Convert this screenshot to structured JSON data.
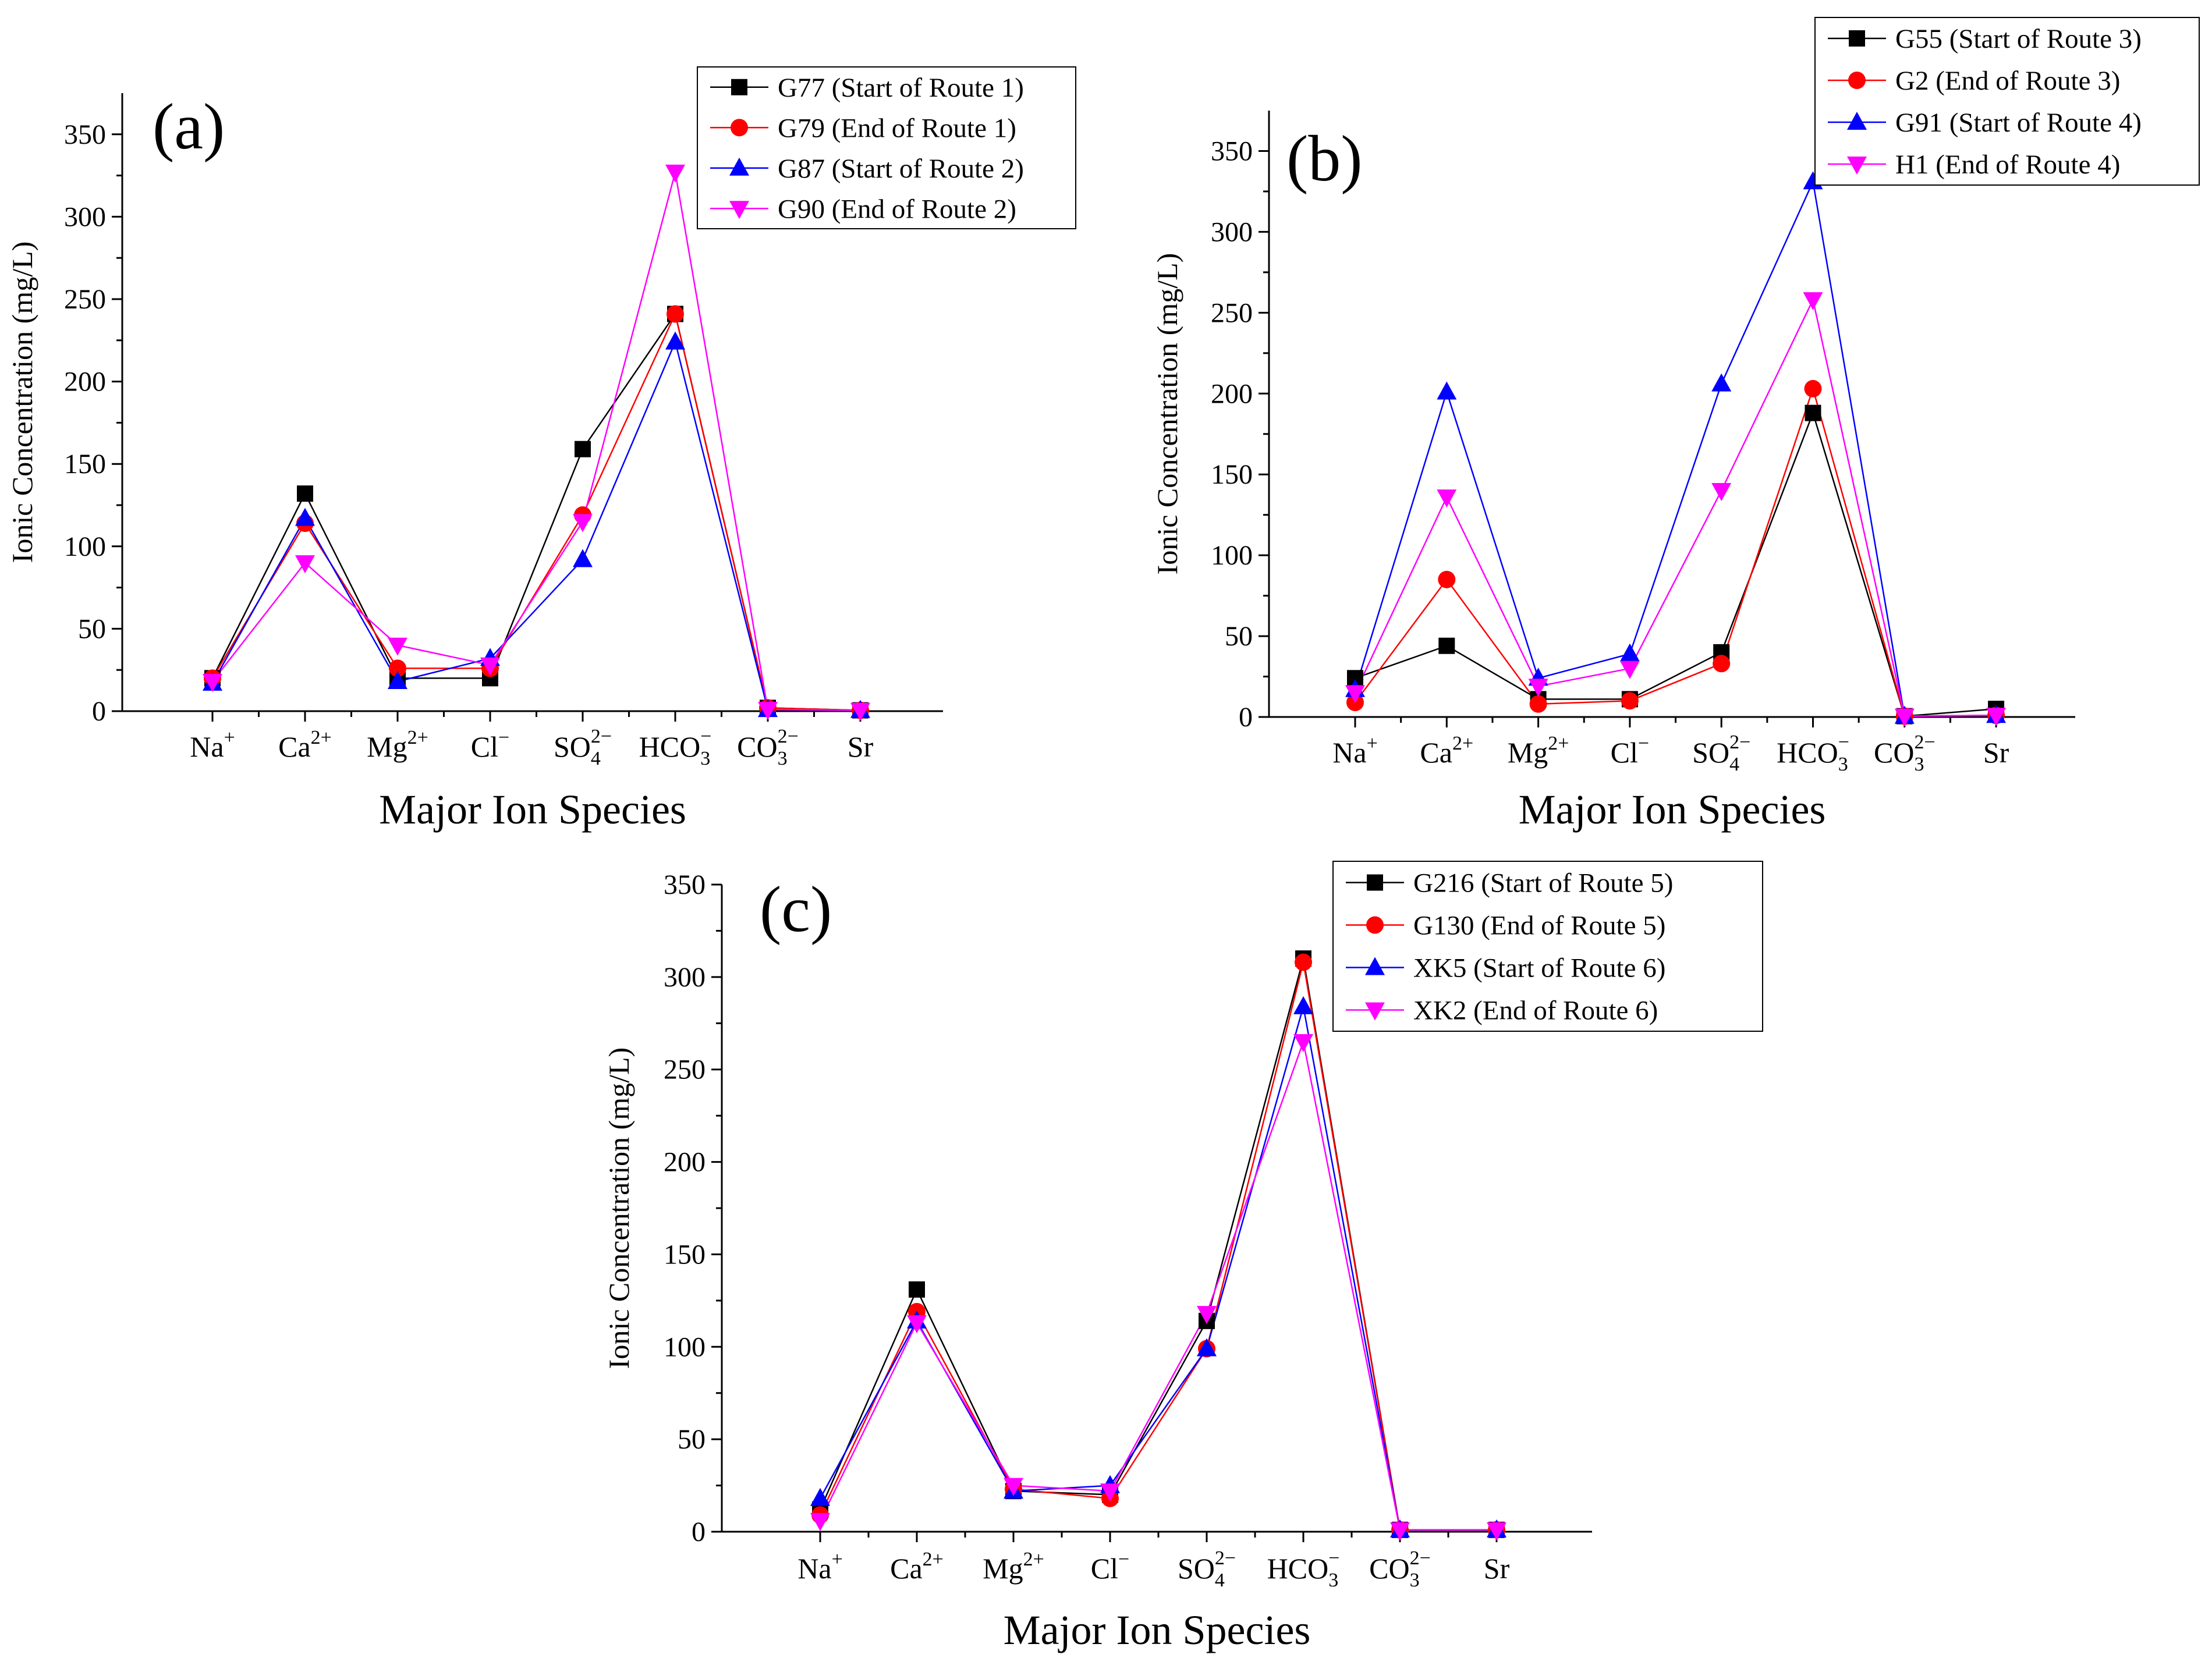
{
  "chart_data": [
    {
      "type": "line",
      "panel_label": "(a)",
      "xlabel": "Major Ion Species",
      "ylabel": "Ionic Concentration (mg/L)",
      "ylim": [
        0,
        375
      ],
      "yticks": [
        0,
        50,
        100,
        150,
        200,
        250,
        300,
        350
      ],
      "categories": [
        {
          "base": "Na",
          "sup": "+",
          "sub": ""
        },
        {
          "base": "Ca",
          "sup": "2+",
          "sub": ""
        },
        {
          "base": "Mg",
          "sup": "2+",
          "sub": ""
        },
        {
          "base": "Cl",
          "sup": "−",
          "sub": ""
        },
        {
          "base": "SO",
          "sup": "2−",
          "sub": "4"
        },
        {
          "base": "HCO",
          "sup": "−",
          "sub": "3"
        },
        {
          "base": "CO",
          "sup": "2−",
          "sub": "3"
        },
        {
          "base": "Sr",
          "sup": "",
          "sub": ""
        }
      ],
      "legend_position": "top-right",
      "series": [
        {
          "name": "G77 (Start of Route 1)",
          "color": "#000000",
          "marker": "square",
          "values": [
            20,
            132,
            20,
            20,
            159,
            241,
            2,
            0.5
          ]
        },
        {
          "name": "G79 (End of Route 1)",
          "color": "#ff0000",
          "marker": "circle",
          "values": [
            20,
            114,
            26,
            26,
            119,
            241,
            2,
            0.5
          ]
        },
        {
          "name": "G87 (Start of Route 2)",
          "color": "#0000ff",
          "marker": "triangle-up",
          "values": [
            17,
            117,
            18,
            32,
            92,
            224,
            1,
            0.5
          ]
        },
        {
          "name": "G90 (End of Route 2)",
          "color": "#ff00ff",
          "marker": "triangle-down",
          "values": [
            18,
            90,
            40,
            28,
            115,
            327,
            1,
            0.5
          ]
        }
      ]
    },
    {
      "type": "line",
      "panel_label": "(b)",
      "xlabel": "Major Ion Species",
      "ylabel": "Ionic Concentration (mg/L)",
      "ylim": [
        0,
        375
      ],
      "yticks": [
        0,
        50,
        100,
        150,
        200,
        250,
        300,
        350
      ],
      "categories": [
        {
          "base": "Na",
          "sup": "+",
          "sub": ""
        },
        {
          "base": "Ca",
          "sup": "2+",
          "sub": ""
        },
        {
          "base": "Mg",
          "sup": "2+",
          "sub": ""
        },
        {
          "base": "Cl",
          "sup": "−",
          "sub": ""
        },
        {
          "base": "SO",
          "sup": "2−",
          "sub": "4"
        },
        {
          "base": "HCO",
          "sup": "−",
          "sub": "3"
        },
        {
          "base": "CO",
          "sup": "2−",
          "sub": "3"
        },
        {
          "base": "Sr",
          "sup": "",
          "sub": ""
        }
      ],
      "legend_position": "top-right",
      "series": [
        {
          "name": "G55 (Start of Route 3)",
          "color": "#000000",
          "marker": "square",
          "values": [
            24,
            44,
            11,
            11,
            40,
            188,
            0.5,
            5
          ]
        },
        {
          "name": "G2 (End of Route 3)",
          "color": "#ff0000",
          "marker": "circle",
          "values": [
            9,
            85,
            8,
            10,
            33,
            203,
            0.5,
            1
          ]
        },
        {
          "name": "G91 (Start of Route 4)",
          "color": "#0000ff",
          "marker": "triangle-up",
          "values": [
            17,
            201,
            24,
            39,
            206,
            331,
            0.5,
            1
          ]
        },
        {
          "name": "H1 (End of Route 4)",
          "color": "#ff00ff",
          "marker": "triangle-down",
          "values": [
            15,
            136,
            19,
            30,
            140,
            258,
            0.5,
            1
          ]
        }
      ]
    },
    {
      "type": "line",
      "panel_label": "(c)",
      "xlabel": "Major Ion Species",
      "ylabel": "Ionic Concentration (mg/L)",
      "ylim": [
        0,
        350
      ],
      "yticks": [
        0,
        50,
        100,
        150,
        200,
        250,
        300,
        350
      ],
      "categories": [
        {
          "base": "Na",
          "sup": "+",
          "sub": ""
        },
        {
          "base": "Ca",
          "sup": "2+",
          "sub": ""
        },
        {
          "base": "Mg",
          "sup": "2+",
          "sub": ""
        },
        {
          "base": "Cl",
          "sup": "−",
          "sub": ""
        },
        {
          "base": "SO",
          "sup": "2−",
          "sub": "4"
        },
        {
          "base": "HCO",
          "sup": "−",
          "sub": "3"
        },
        {
          "base": "CO",
          "sup": "2−",
          "sub": "3"
        },
        {
          "base": "Sr",
          "sup": "",
          "sub": ""
        }
      ],
      "legend_position": "top-right",
      "series": [
        {
          "name": "G216 (Start of Route 5)",
          "color": "#000000",
          "marker": "square",
          "values": [
            12,
            131,
            22,
            20,
            114,
            310,
            1,
            1
          ]
        },
        {
          "name": "G130 (End of Route 5)",
          "color": "#ff0000",
          "marker": "circle",
          "values": [
            9,
            119,
            23,
            18,
            99,
            308,
            1,
            1
          ]
        },
        {
          "name": "XK5 (Start of Route 6)",
          "color": "#0000ff",
          "marker": "triangle-up",
          "values": [
            18,
            114,
            22,
            25,
            99,
            284,
            1,
            1
          ]
        },
        {
          "name": "XK2 (End of Route 6)",
          "color": "#ff00ff",
          "marker": "triangle-down",
          "values": [
            6,
            113,
            25,
            22,
            118,
            265,
            1,
            1
          ]
        }
      ]
    }
  ]
}
